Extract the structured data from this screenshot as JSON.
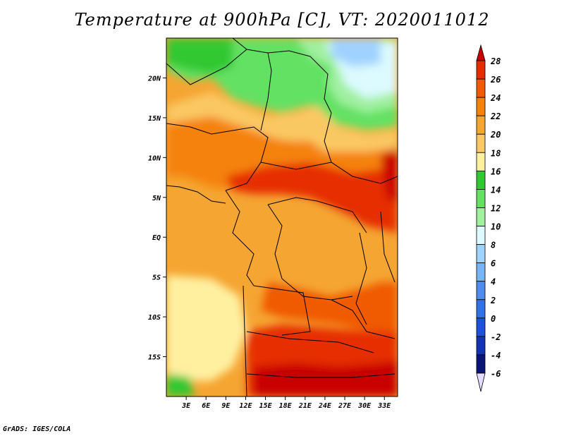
{
  "title": "Temperature at 900hPa [C], VT: 2020011012",
  "credit": "GrADS: IGES/COLA",
  "map": {
    "lon_range": [
      0,
      35
    ],
    "lat_range": [
      -20,
      25
    ],
    "x_ticks": [
      {
        "lon": 3,
        "label": "3E"
      },
      {
        "lon": 6,
        "label": "6E"
      },
      {
        "lon": 9,
        "label": "9E"
      },
      {
        "lon": 12,
        "label": "12E"
      },
      {
        "lon": 15,
        "label": "15E"
      },
      {
        "lon": 18,
        "label": "18E"
      },
      {
        "lon": 21,
        "label": "21E"
      },
      {
        "lon": 24,
        "label": "24E"
      },
      {
        "lon": 27,
        "label": "27E"
      },
      {
        "lon": 30,
        "label": "30E"
      },
      {
        "lon": 33,
        "label": "33E"
      }
    ],
    "y_ticks": [
      {
        "lat": 20,
        "label": "20N"
      },
      {
        "lat": 15,
        "label": "15N"
      },
      {
        "lat": 10,
        "label": "10N"
      },
      {
        "lat": 5,
        "label": "5N"
      },
      {
        "lat": 0,
        "label": "EQ"
      },
      {
        "lat": -5,
        "label": "5S"
      },
      {
        "lat": -10,
        "label": "10S"
      },
      {
        "lat": -15,
        "label": "15S"
      }
    ]
  },
  "colorbar": {
    "levels": [
      {
        "value": "28",
        "color": "#c80000"
      },
      {
        "value": "26",
        "color": "#e62d00"
      },
      {
        "value": "24",
        "color": "#f05a00"
      },
      {
        "value": "22",
        "color": "#f5820a"
      },
      {
        "value": "20",
        "color": "#f5a532"
      },
      {
        "value": "18",
        "color": "#fac864"
      },
      {
        "value": "16",
        "color": "#fff0a0"
      },
      {
        "value": "14",
        "color": "#32c832"
      },
      {
        "value": "12",
        "color": "#64e164"
      },
      {
        "value": "10",
        "color": "#a0f0a0"
      },
      {
        "value": "8",
        "color": "#dcfaff"
      },
      {
        "value": "6",
        "color": "#a0d2ff"
      },
      {
        "value": "4",
        "color": "#78b4f5"
      },
      {
        "value": "2",
        "color": "#508cf0"
      },
      {
        "value": "0",
        "color": "#3270e6"
      },
      {
        "value": "-2",
        "color": "#1e50dc"
      },
      {
        "value": "-4",
        "color": "#1432b4"
      },
      {
        "value": "-6",
        "color": "#0a1478"
      }
    ],
    "under_color": "#e6dcff"
  }
}
